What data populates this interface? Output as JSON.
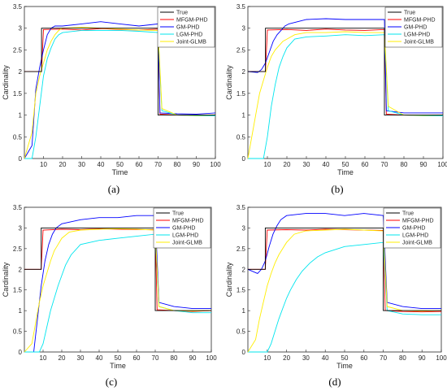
{
  "chart_data": [
    {
      "panel": "a",
      "caption": "(a)",
      "type": "line",
      "xlabel": "Time",
      "ylabel": "Cardinality",
      "xlim": [
        0,
        100
      ],
      "ylim": [
        0,
        3.5
      ],
      "xticks": [
        "10",
        "20",
        "30",
        "40",
        "50",
        "60",
        "70",
        "80",
        "90",
        "100"
      ],
      "yticks": [
        "0",
        "0.5",
        "1",
        "1.5",
        "2",
        "2.5",
        "3",
        "3.5"
      ],
      "legend_position": "top-right",
      "series": [
        {
          "name": "True",
          "color": "#000000",
          "x": [
            0,
            9,
            9,
            70,
            70,
            100
          ],
          "y": [
            2,
            2,
            3,
            3,
            1,
            1
          ]
        },
        {
          "name": "MFGM-PHD",
          "color": "#ff0000",
          "x": [
            0,
            9,
            10,
            20,
            30,
            40,
            50,
            60,
            70,
            71,
            80,
            90,
            100
          ],
          "y": [
            2,
            2,
            2.97,
            2.98,
            2.96,
            2.99,
            2.97,
            2.96,
            2.98,
            1.02,
            1.0,
            0.99,
            1.0
          ]
        },
        {
          "name": "GM-PHD",
          "color": "#0000ff",
          "x": [
            0,
            4,
            6,
            8,
            10,
            12,
            14,
            16,
            20,
            30,
            40,
            50,
            60,
            70,
            71,
            80,
            90,
            100
          ],
          "y": [
            0,
            0.3,
            1.6,
            2.1,
            2.5,
            2.85,
            3.0,
            3.05,
            3.05,
            3.1,
            3.15,
            3.1,
            3.05,
            3.1,
            1.05,
            1.03,
            1.02,
            1.05
          ]
        },
        {
          "name": "LGM-PHD",
          "color": "#00e5ee",
          "x": [
            0,
            4,
            6,
            8,
            10,
            12,
            14,
            16,
            18,
            20,
            30,
            40,
            50,
            60,
            70,
            72,
            80,
            90,
            100
          ],
          "y": [
            0,
            0,
            0.5,
            1.2,
            1.9,
            2.3,
            2.55,
            2.75,
            2.85,
            2.9,
            2.95,
            2.95,
            2.95,
            2.93,
            2.9,
            1.1,
            1.0,
            0.98,
            0.98
          ]
        },
        {
          "name": "Joint-GLMB",
          "color": "#ffee00",
          "x": [
            0,
            4,
            6,
            8,
            10,
            12,
            14,
            16,
            18,
            20,
            30,
            40,
            50,
            60,
            70,
            72,
            80,
            90,
            100
          ],
          "y": [
            0,
            0.6,
            1.5,
            1.9,
            2.2,
            2.5,
            2.7,
            2.85,
            2.95,
            3.0,
            3.02,
            3.0,
            2.98,
            2.96,
            2.95,
            1.15,
            1.0,
            0.99,
            1.0
          ]
        }
      ]
    },
    {
      "panel": "b",
      "caption": "(b)",
      "type": "line",
      "xlabel": "Time",
      "ylabel": "Cardinality",
      "xlim": [
        0,
        100
      ],
      "ylim": [
        0,
        3.5
      ],
      "xticks": [
        "10",
        "20",
        "30",
        "40",
        "50",
        "60",
        "70",
        "80",
        "90",
        "100"
      ],
      "yticks": [
        "0",
        "0.5",
        "1",
        "1.5",
        "2",
        "2.5",
        "3",
        "3.5"
      ],
      "legend_position": "top-right",
      "series": [
        {
          "name": "True",
          "color": "#000000",
          "x": [
            0,
            9,
            9,
            70,
            70,
            100
          ],
          "y": [
            2,
            2,
            3,
            3,
            1,
            1
          ]
        },
        {
          "name": "MFGM-PHD",
          "color": "#ff0000",
          "x": [
            0,
            9,
            10,
            20,
            30,
            40,
            50,
            60,
            70,
            71,
            80,
            90,
            100
          ],
          "y": [
            2,
            2,
            2.96,
            2.97,
            2.95,
            2.98,
            2.96,
            2.95,
            2.97,
            1.02,
            1.0,
            0.99,
            1.0
          ]
        },
        {
          "name": "GM-PHD",
          "color": "#0000ff",
          "x": [
            0,
            5,
            7,
            9,
            11,
            13,
            15,
            17,
            19,
            21,
            30,
            40,
            50,
            60,
            70,
            71,
            80,
            90,
            100
          ],
          "y": [
            2,
            1.98,
            2.05,
            2.2,
            2.45,
            2.7,
            2.85,
            2.95,
            3.05,
            3.1,
            3.2,
            3.22,
            3.2,
            3.2,
            3.2,
            1.1,
            1.05,
            1.05,
            1.05
          ]
        },
        {
          "name": "LGM-PHD",
          "color": "#00e5ee",
          "x": [
            0,
            8,
            10,
            12,
            14,
            16,
            18,
            20,
            22,
            24,
            30,
            40,
            50,
            60,
            70,
            72,
            80,
            90,
            100
          ],
          "y": [
            0,
            0,
            0.5,
            1.2,
            1.7,
            2.1,
            2.35,
            2.55,
            2.65,
            2.75,
            2.8,
            2.82,
            2.85,
            2.83,
            2.85,
            1.1,
            1.0,
            0.98,
            0.98
          ]
        },
        {
          "name": "Joint-GLMB",
          "color": "#ffee00",
          "x": [
            0,
            4,
            6,
            8,
            10,
            12,
            14,
            16,
            18,
            20,
            24,
            30,
            40,
            50,
            60,
            70,
            72,
            80,
            90,
            100
          ],
          "y": [
            0,
            1.0,
            1.5,
            1.8,
            2.1,
            2.35,
            2.5,
            2.6,
            2.7,
            2.75,
            2.85,
            2.9,
            2.9,
            2.92,
            2.9,
            2.9,
            1.2,
            1.0,
            0.99,
            1.0
          ]
        }
      ]
    },
    {
      "panel": "c",
      "caption": "(c)",
      "type": "line",
      "xlabel": "Time",
      "ylabel": "Cardinality",
      "xlim": [
        0,
        100
      ],
      "ylim": [
        0,
        3.5
      ],
      "xticks": [
        "10",
        "20",
        "30",
        "40",
        "50",
        "60",
        "70",
        "80",
        "90",
        "100"
      ],
      "yticks": [
        "0",
        "0.5",
        "1",
        "1.5",
        "2",
        "2.5",
        "3",
        "3.5"
      ],
      "legend_position": "top-right",
      "series": [
        {
          "name": "True",
          "color": "#000000",
          "x": [
            0,
            9,
            9,
            70,
            70,
            100
          ],
          "y": [
            2,
            2,
            3,
            3,
            1,
            1
          ]
        },
        {
          "name": "MFGM-PHD",
          "color": "#ff0000",
          "x": [
            0,
            9,
            10,
            20,
            30,
            40,
            50,
            60,
            70,
            71,
            80,
            90,
            100
          ],
          "y": [
            2,
            2,
            2.95,
            2.97,
            2.96,
            2.98,
            2.97,
            2.96,
            2.96,
            1.02,
            1.0,
            0.98,
            1.0
          ]
        },
        {
          "name": "GM-PHD",
          "color": "#0000ff",
          "x": [
            0,
            5,
            7,
            9,
            11,
            13,
            15,
            17,
            20,
            30,
            40,
            50,
            60,
            70,
            72,
            80,
            90,
            100
          ],
          "y": [
            0,
            0,
            0.8,
            1.6,
            2.2,
            2.6,
            2.85,
            3.0,
            3.1,
            3.2,
            3.25,
            3.25,
            3.3,
            3.3,
            1.2,
            1.1,
            1.05,
            1.05
          ]
        },
        {
          "name": "LGM-PHD",
          "color": "#00e5ee",
          "x": [
            0,
            8,
            10,
            12,
            14,
            16,
            18,
            20,
            22,
            25,
            30,
            40,
            50,
            60,
            70,
            72,
            80,
            90,
            100
          ],
          "y": [
            0,
            0,
            0.2,
            0.6,
            1.0,
            1.3,
            1.6,
            1.85,
            2.1,
            2.35,
            2.6,
            2.7,
            2.75,
            2.8,
            2.85,
            1.1,
            1.0,
            0.95,
            0.95
          ]
        },
        {
          "name": "Joint-GLMB",
          "color": "#ffee00",
          "x": [
            0,
            4,
            6,
            8,
            10,
            12,
            14,
            16,
            18,
            20,
            24,
            30,
            40,
            50,
            60,
            70,
            72,
            80,
            90,
            100
          ],
          "y": [
            0,
            0.2,
            0.7,
            1.2,
            1.6,
            1.9,
            2.2,
            2.45,
            2.6,
            2.75,
            2.9,
            2.95,
            2.97,
            2.98,
            2.97,
            2.95,
            1.1,
            1.0,
            0.99,
            1.0
          ]
        }
      ]
    },
    {
      "panel": "d",
      "caption": "(d)",
      "type": "line",
      "xlabel": "Time",
      "ylabel": "Cardinality",
      "xlim": [
        0,
        100
      ],
      "ylim": [
        0,
        3.5
      ],
      "xticks": [
        "10",
        "20",
        "30",
        "40",
        "50",
        "60",
        "70",
        "80",
        "90",
        "100"
      ],
      "yticks": [
        "0",
        "0.5",
        "1",
        "1.5",
        "2",
        "2.5",
        "3",
        "3.5"
      ],
      "legend_position": "top-right",
      "series": [
        {
          "name": "True",
          "color": "#000000",
          "x": [
            0,
            9,
            9,
            70,
            70,
            100
          ],
          "y": [
            2,
            2,
            3,
            3,
            1,
            1
          ]
        },
        {
          "name": "MFGM-PHD",
          "color": "#ff0000",
          "x": [
            0,
            9,
            10,
            20,
            30,
            40,
            50,
            60,
            70,
            71,
            80,
            90,
            100
          ],
          "y": [
            2,
            2,
            2.95,
            2.96,
            2.95,
            2.97,
            2.96,
            2.95,
            2.94,
            1.0,
            0.98,
            0.97,
            0.98
          ]
        },
        {
          "name": "GM-PHD",
          "color": "#0000ff",
          "x": [
            0,
            5,
            7,
            9,
            11,
            13,
            15,
            17,
            20,
            30,
            40,
            50,
            60,
            70,
            72,
            80,
            90,
            100
          ],
          "y": [
            2,
            1.9,
            2.0,
            2.2,
            2.55,
            2.85,
            3.05,
            3.2,
            3.3,
            3.35,
            3.35,
            3.3,
            3.35,
            3.3,
            1.2,
            1.1,
            1.05,
            1.05
          ]
        },
        {
          "name": "LGM-PHD",
          "color": "#00e5ee",
          "x": [
            0,
            10,
            12,
            14,
            16,
            18,
            20,
            22,
            25,
            28,
            32,
            36,
            40,
            50,
            60,
            70,
            72,
            80,
            90,
            100
          ],
          "y": [
            0,
            0,
            0.2,
            0.5,
            0.8,
            1.05,
            1.3,
            1.5,
            1.75,
            1.95,
            2.15,
            2.3,
            2.4,
            2.55,
            2.6,
            2.65,
            1.0,
            0.92,
            0.9,
            0.9
          ]
        },
        {
          "name": "Joint-GLMB",
          "color": "#ffee00",
          "x": [
            0,
            4,
            6,
            8,
            10,
            12,
            14,
            16,
            18,
            20,
            24,
            30,
            40,
            50,
            60,
            70,
            72,
            80,
            90,
            100
          ],
          "y": [
            0,
            0.3,
            0.8,
            1.2,
            1.6,
            1.9,
            2.15,
            2.35,
            2.5,
            2.65,
            2.85,
            2.93,
            2.95,
            2.97,
            2.95,
            2.93,
            1.1,
            1.0,
            0.99,
            1.0
          ]
        }
      ]
    }
  ]
}
